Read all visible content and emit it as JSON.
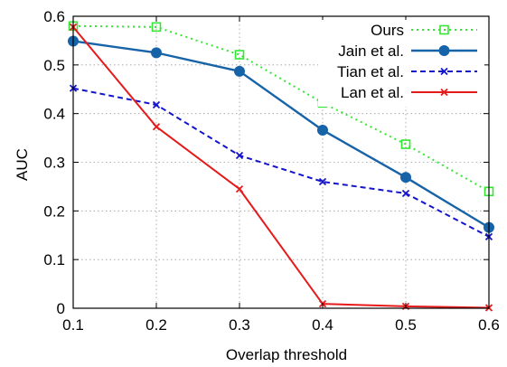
{
  "chart_data": {
    "type": "line",
    "title": "",
    "xlabel": "Overlap threshold",
    "ylabel": "AUC",
    "x": [
      0.1,
      0.2,
      0.3,
      0.4,
      0.5,
      0.6
    ],
    "xlim": [
      0.1,
      0.6
    ],
    "ylim": [
      0,
      0.6
    ],
    "xticks": [
      "0.1",
      "0.2",
      "0.3",
      "0.4",
      "0.5",
      "0.6"
    ],
    "yticks": [
      "0",
      "0.1",
      "0.2",
      "0.3",
      "0.4",
      "0.5",
      "0.6"
    ],
    "grid": true,
    "legend_position": "top-right",
    "series": [
      {
        "name": "Ours",
        "values": [
          0.58,
          0.578,
          0.521,
          0.422,
          0.337,
          0.24
        ],
        "color": "#33e633",
        "dash": "dotted",
        "marker": "square-open"
      },
      {
        "name": "Jain et al.",
        "values": [
          0.549,
          0.525,
          0.487,
          0.366,
          0.269,
          0.166
        ],
        "color": "#1763a8",
        "dash": "solid",
        "marker": "circle-filled"
      },
      {
        "name": "Tian et al.",
        "values": [
          0.452,
          0.418,
          0.314,
          0.26,
          0.236,
          0.147
        ],
        "color": "#1414cc",
        "dash": "dashed",
        "marker": "x"
      },
      {
        "name": "Lan et al.",
        "values": [
          0.578,
          0.373,
          0.245,
          0.009,
          0.004,
          0.001
        ],
        "color": "#e61a1a",
        "dash": "solid",
        "marker": "x"
      }
    ]
  }
}
